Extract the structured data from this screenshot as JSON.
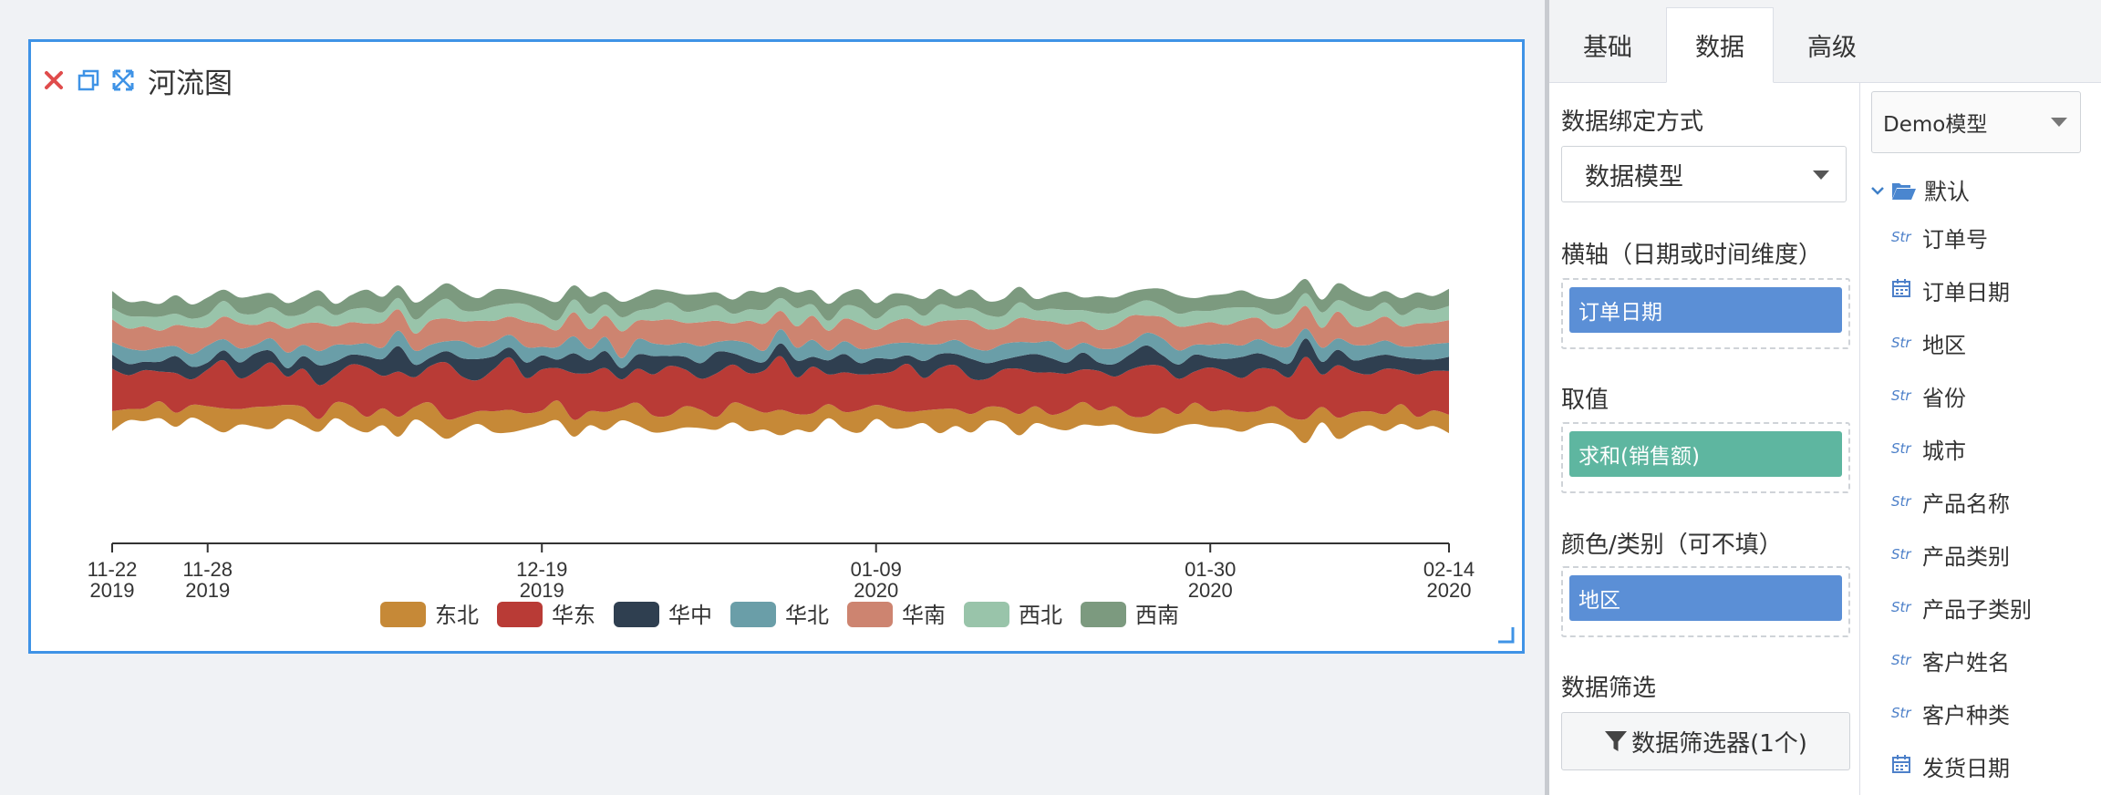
{
  "chart_card": {
    "title": "河流图"
  },
  "tabs": [
    {
      "label": "基础"
    },
    {
      "label": "数据"
    },
    {
      "label": "高级"
    }
  ],
  "data_binding": {
    "title": "数据绑定方式",
    "value": "数据模型"
  },
  "x_axis": {
    "title": "横轴（日期或时间维度）",
    "field": "订单日期"
  },
  "value_field": {
    "title": "取值",
    "field": "求和(销售额)"
  },
  "category_field": {
    "title": "颜色/类别（可不填）",
    "field": "地区"
  },
  "filter": {
    "title": "数据筛选",
    "button_label": "数据筛选器(1个)"
  },
  "model": {
    "selected": "Demo模型",
    "folder_label": "默认",
    "fields": [
      {
        "type": "Str",
        "name": "订单号"
      },
      {
        "type": "date",
        "name": "订单日期"
      },
      {
        "type": "Str",
        "name": "地区"
      },
      {
        "type": "Str",
        "name": "省份"
      },
      {
        "type": "Str",
        "name": "城市"
      },
      {
        "type": "Str",
        "name": "产品名称"
      },
      {
        "type": "Str",
        "name": "产品类别"
      },
      {
        "type": "Str",
        "name": "产品子类别"
      },
      {
        "type": "Str",
        "name": "客户姓名"
      },
      {
        "type": "Str",
        "name": "客户种类"
      },
      {
        "type": "date",
        "name": "发货日期"
      }
    ]
  },
  "colors": {
    "accent_blue": "#5b8fd6",
    "accent_green": "#5eb6a0",
    "close_red": "#e04c4c",
    "tool_blue": "#3f93e6"
  },
  "chart_data": {
    "type": "area",
    "subtype": "streamgraph",
    "title": "河流图",
    "x_ticks": [
      {
        "label": "11-22",
        "year": "2019"
      },
      {
        "label": "11-28",
        "year": "2019"
      },
      {
        "label": "12-19",
        "year": "2019"
      },
      {
        "label": "01-09",
        "year": "2020"
      },
      {
        "label": "01-30",
        "year": "2020"
      },
      {
        "label": "02-14",
        "year": "2020"
      }
    ],
    "x_tick_days": [
      0,
      6,
      27,
      48,
      69,
      84
    ],
    "x_range_days": [
      0,
      84
    ],
    "legend_position": "bottom",
    "series": [
      {
        "name": "东北",
        "color": "#c68937",
        "values": [
          14,
          8,
          9,
          12,
          10,
          9,
          13,
          17,
          11,
          14,
          16,
          10,
          13,
          9,
          11,
          15,
          11,
          12,
          14,
          9,
          18,
          14,
          10,
          9,
          15,
          16,
          11,
          10,
          14,
          12,
          10,
          13,
          9,
          16,
          12,
          11,
          15,
          13,
          9,
          14,
          17,
          12,
          18,
          11,
          13,
          10,
          12,
          16,
          10,
          14,
          11,
          9,
          17,
          12,
          13,
          10,
          11,
          15,
          12,
          9,
          14,
          16,
          11,
          13,
          10,
          12,
          18,
          9,
          15,
          11,
          13,
          14,
          10,
          12,
          9,
          17,
          11,
          15,
          13,
          10,
          12,
          14,
          9,
          11,
          13
        ]
      },
      {
        "name": "华东",
        "color": "#b93b36",
        "values": [
          30,
          24,
          27,
          21,
          28,
          18,
          26,
          34,
          22,
          25,
          31,
          20,
          27,
          24,
          19,
          29,
          35,
          23,
          32,
          21,
          26,
          40,
          28,
          22,
          30,
          37,
          25,
          29,
          23,
          33,
          27,
          31,
          20,
          24,
          29,
          35,
          26,
          22,
          31,
          27,
          24,
          30,
          38,
          26,
          33,
          21,
          28,
          25,
          22,
          26,
          34,
          23,
          29,
          31,
          25,
          20,
          27,
          32,
          24,
          30,
          26,
          23,
          28,
          21,
          33,
          36,
          29,
          25,
          22,
          31,
          27,
          24,
          30,
          26,
          28,
          44,
          23,
          37,
          29,
          26,
          32,
          24,
          30,
          28,
          31
        ]
      },
      {
        "name": "华中",
        "color": "#2f3f50",
        "values": [
          10,
          8,
          6,
          7,
          12,
          9,
          5,
          7,
          11,
          13,
          8,
          6,
          9,
          14,
          10,
          7,
          8,
          12,
          18,
          9,
          6,
          8,
          13,
          15,
          9,
          7,
          11,
          10,
          6,
          14,
          9,
          12,
          8,
          10,
          13,
          7,
          9,
          11,
          15,
          8,
          10,
          6,
          9,
          12,
          7,
          10,
          13,
          8,
          11,
          9,
          6,
          12,
          10,
          8,
          14,
          11,
          7,
          9,
          13,
          10,
          8,
          12,
          6,
          9,
          11,
          14,
          8,
          10,
          12,
          7,
          9,
          15,
          11,
          8,
          10,
          13,
          9,
          11,
          8,
          12,
          10,
          9,
          11,
          8,
          10
        ]
      },
      {
        "name": "华北",
        "color": "#6a9ea8",
        "values": [
          9,
          11,
          8,
          10,
          7,
          9,
          12,
          8,
          10,
          6,
          9,
          11,
          8,
          10,
          12,
          7,
          9,
          8,
          11,
          10,
          9,
          7,
          12,
          8,
          10,
          9,
          11,
          6,
          9,
          12,
          8,
          10,
          7,
          11,
          9,
          8,
          10,
          12,
          7,
          9,
          11,
          8,
          10,
          9,
          12,
          7,
          9,
          10,
          8,
          11,
          9,
          12,
          7,
          10,
          8,
          9,
          11,
          10,
          8,
          12,
          9,
          7,
          10,
          11,
          8,
          9,
          12,
          10,
          7,
          9,
          11,
          8,
          10,
          9,
          12,
          7,
          10,
          8,
          11,
          9,
          10,
          8,
          9,
          11,
          10
        ]
      },
      {
        "name": "华南",
        "color": "#cd8470",
        "values": [
          16,
          14,
          17,
          12,
          15,
          19,
          13,
          16,
          18,
          14,
          12,
          17,
          15,
          20,
          13,
          16,
          14,
          18,
          15,
          12,
          17,
          16,
          14,
          19,
          15,
          13,
          18,
          16,
          12,
          17,
          14,
          15,
          19,
          13,
          16,
          18,
          14,
          17,
          15,
          12,
          16,
          19,
          13,
          15,
          17,
          14,
          16,
          18,
          12,
          15,
          17,
          13,
          16,
          14,
          19,
          15,
          12,
          17,
          16,
          14,
          18,
          15,
          13,
          16,
          19,
          12,
          15,
          17,
          14,
          16,
          13,
          18,
          15,
          12,
          17,
          16,
          14,
          19,
          13,
          15,
          17,
          14,
          16,
          15,
          16
        ]
      },
      {
        "name": "西北",
        "color": "#99c4aa",
        "values": [
          8,
          9,
          7,
          10,
          8,
          6,
          9,
          11,
          7,
          8,
          10,
          9,
          7,
          12,
          8,
          9,
          11,
          7,
          8,
          10,
          9,
          14,
          8,
          7,
          10,
          9,
          12,
          8,
          7,
          9,
          11,
          8,
          10,
          7,
          9,
          12,
          8,
          9,
          11,
          7,
          8,
          10,
          9,
          13,
          8,
          7,
          9,
          11,
          8,
          10,
          9,
          7,
          12,
          8,
          9,
          10,
          8,
          11,
          7,
          9,
          10,
          8,
          12,
          9,
          7,
          11,
          8,
          9,
          10,
          8,
          12,
          9,
          7,
          10,
          8,
          9,
          11,
          8,
          14,
          9,
          10,
          8,
          11,
          9,
          10
        ]
      },
      {
        "name": "西南",
        "color": "#7c9a7f",
        "values": [
          12,
          10,
          11,
          9,
          13,
          10,
          12,
          8,
          11,
          13,
          10,
          9,
          12,
          11,
          8,
          10,
          13,
          11,
          9,
          12,
          10,
          11,
          13,
          9,
          12,
          10,
          8,
          11,
          13,
          10,
          12,
          9,
          11,
          10,
          13,
          8,
          12,
          11,
          9,
          10,
          13,
          12,
          8,
          11,
          10,
          12,
          9,
          13,
          11,
          10,
          8,
          12,
          11,
          9,
          13,
          10,
          12,
          11,
          8,
          10,
          13,
          9,
          12,
          11,
          10,
          8,
          12,
          13,
          9,
          11,
          10,
          12,
          8,
          11,
          13,
          10,
          9,
          12,
          11,
          10,
          8,
          12,
          11,
          10,
          12
        ]
      }
    ]
  }
}
